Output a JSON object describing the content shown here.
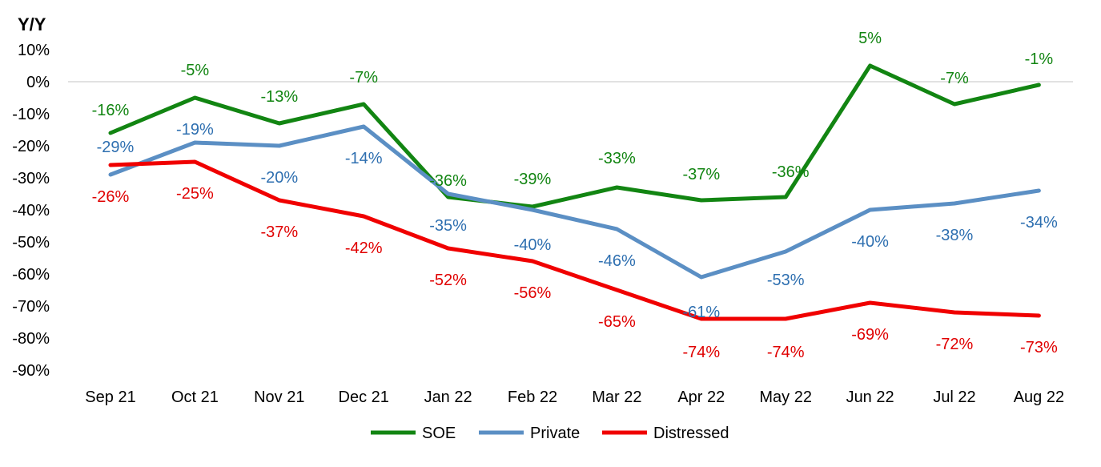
{
  "chart_data": {
    "type": "line",
    "title": "Y/Y",
    "categories": [
      "Sep 21",
      "Oct 21",
      "Nov 21",
      "Dec 21",
      "Jan 22",
      "Feb 22",
      "Mar 22",
      "Apr 22",
      "May 22",
      "Jun 22",
      "Jul 22",
      "Aug 22"
    ],
    "series": [
      {
        "name": "SOE",
        "color": "#128512",
        "values": [
          -16,
          -5,
          -13,
          -7,
          -36,
          -39,
          -33,
          -37,
          -36,
          5,
          -7,
          -1
        ],
        "labels": [
          "-16%",
          "-5%",
          "-13%",
          "-7%",
          "-36%",
          "-39%",
          "-33%",
          "-37%",
          "-36%",
          "5%",
          "-7%",
          "-1%"
        ]
      },
      {
        "name": "Private",
        "color": "#5b8fc4",
        "values": [
          -29,
          -19,
          -20,
          -14,
          -35,
          -40,
          -46,
          -61,
          -53,
          -40,
          -38,
          -34
        ],
        "labels": [
          "-29%",
          "-19%",
          "-20%",
          "-14%",
          "-35%",
          "-40%",
          "-46%",
          "-61%",
          "-53%",
          "-40%",
          "-38%",
          "-34%"
        ]
      },
      {
        "name": "Distressed",
        "color": "#f00000",
        "values": [
          -26,
          -25,
          -37,
          -42,
          -52,
          -56,
          -65,
          -74,
          -74,
          -69,
          -72,
          -73
        ],
        "labels": [
          "-26%",
          "-25%",
          "-37%",
          "-42%",
          "-52%",
          "-56%",
          "-65%",
          "-74%",
          "-74%",
          "-69%",
          "-72%",
          "-73%"
        ]
      }
    ],
    "ylim": [
      -90,
      10
    ],
    "yticks": [
      10,
      0,
      -10,
      -20,
      -30,
      -40,
      -50,
      -60,
      -70,
      -80,
      -90
    ],
    "ytick_labels": [
      "10%",
      "0%",
      "-10%",
      "-20%",
      "-30%",
      "-40%",
      "-50%",
      "-60%",
      "-70%",
      "-80%",
      "-90%"
    ],
    "label_colors": {
      "SOE": "#128512",
      "Private": "#2e6fb0",
      "Distressed": "#e00000"
    },
    "grid": false,
    "legend": "bottom-center"
  }
}
